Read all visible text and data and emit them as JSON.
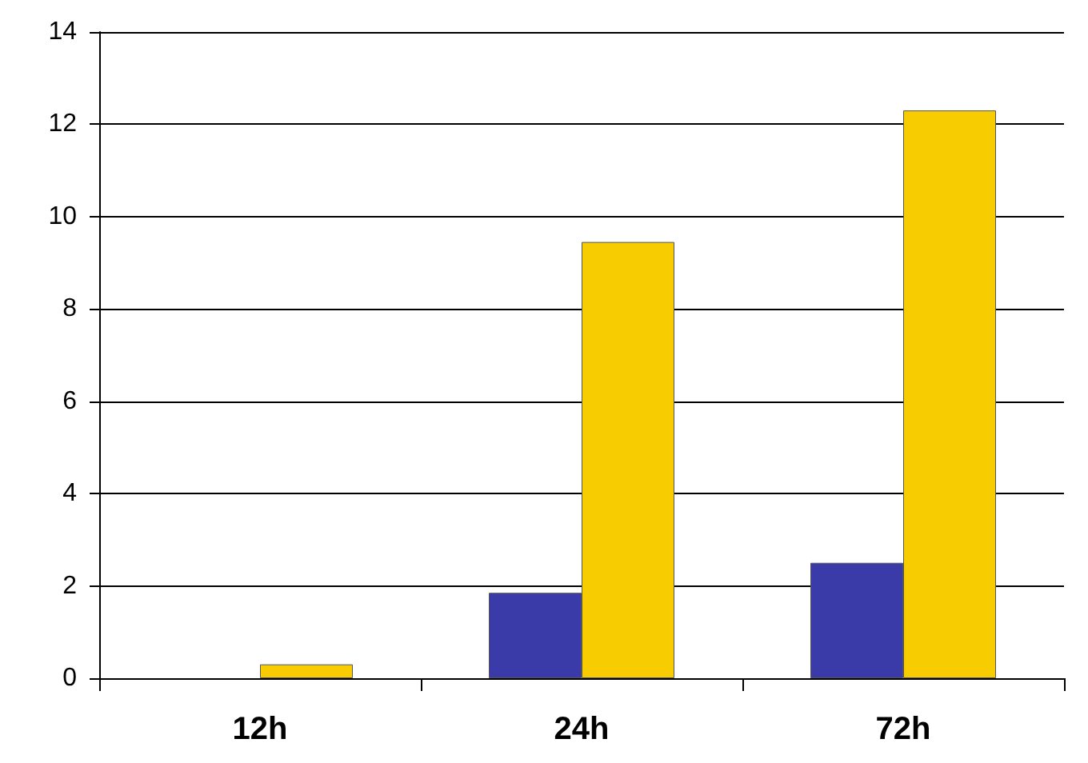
{
  "chart_data": {
    "type": "bar",
    "categories": [
      "12h",
      "24h",
      "72h"
    ],
    "series": [
      {
        "color": "#3a3aa8",
        "values": [
          null,
          1.85,
          2.5
        ]
      },
      {
        "color": "#f7cc00",
        "values": [
          0.3,
          9.45,
          12.3
        ]
      }
    ],
    "ylim": [
      0,
      14
    ],
    "yticks": [
      0,
      2,
      4,
      6,
      8,
      10,
      12,
      14
    ],
    "grid": "y"
  }
}
